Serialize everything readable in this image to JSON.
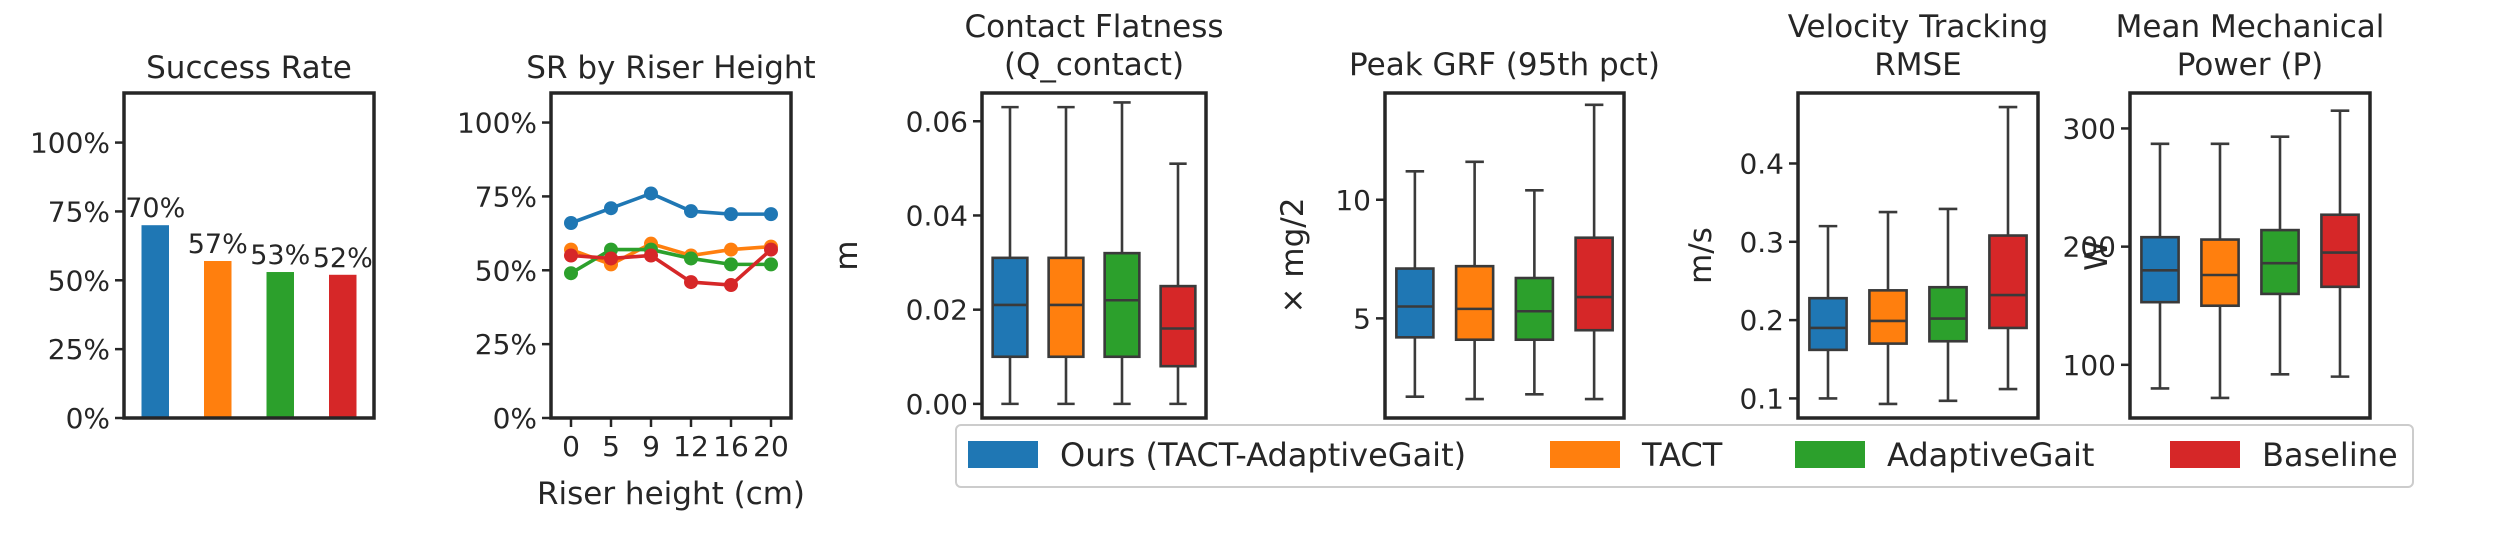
{
  "colors": {
    "ours": "#1f77b4",
    "tact": "#ff7f0e",
    "adaptive": "#2ca02c",
    "baseline": "#d62728"
  },
  "legend": {
    "items": [
      {
        "label": "Ours (TACT-AdaptiveGait)",
        "color": "#1f77b4"
      },
      {
        "label": "TACT",
        "color": "#ff7f0e"
      },
      {
        "label": "AdaptiveGait",
        "color": "#2ca02c"
      },
      {
        "label": "Baseline",
        "color": "#d62728"
      }
    ]
  },
  "chart_data": [
    {
      "type": "bar",
      "title": "Success Rate",
      "categories": [
        "Ours (TACT-AdaptiveGait)",
        "TACT",
        "AdaptiveGait",
        "Baseline"
      ],
      "values": [
        70,
        57,
        53,
        52
      ],
      "value_labels": [
        "70%",
        "57%",
        "53%",
        "52%"
      ],
      "ylim": [
        0,
        118
      ],
      "yticks": [
        0,
        25,
        50,
        75,
        100
      ],
      "ytick_labels": [
        "0%",
        "25%",
        "50%",
        "75%",
        "100%"
      ],
      "xlabel": "",
      "ylabel": ""
    },
    {
      "type": "line",
      "title": "SR by Riser Height",
      "xlabel": "Riser height (cm)",
      "ylabel": "",
      "categories": [
        "0",
        "5",
        "9",
        "12",
        "16",
        "20"
      ],
      "ylim": [
        0,
        110
      ],
      "yticks": [
        0,
        25,
        50,
        75,
        100
      ],
      "ytick_labels": [
        "0%",
        "25%",
        "50%",
        "75%",
        "100%"
      ],
      "series": [
        {
          "name": "Ours (TACT-AdaptiveGait)",
          "values": [
            66,
            71,
            76,
            70,
            69,
            69
          ]
        },
        {
          "name": "TACT",
          "values": [
            57,
            52,
            59,
            55,
            57,
            58
          ]
        },
        {
          "name": "AdaptiveGait",
          "values": [
            49,
            57,
            57,
            54,
            52,
            52
          ]
        },
        {
          "name": "Baseline",
          "values": [
            55,
            54,
            55,
            46,
            45,
            57
          ]
        }
      ]
    },
    {
      "type": "box",
      "title": "Contact Flatness (Q_contact)",
      "title_lines": [
        "Contact Flatness",
        "(Q_contact)"
      ],
      "ylabel": "m",
      "ylim": [
        -0.003,
        0.066
      ],
      "yticks": [
        0.0,
        0.02,
        0.04,
        0.06
      ],
      "ytick_labels": [
        "0.00",
        "0.02",
        "0.04",
        "0.06"
      ],
      "series": [
        {
          "name": "Ours (TACT-AdaptiveGait)",
          "min": 0.0,
          "q1": 0.01,
          "median": 0.021,
          "q3": 0.031,
          "max": 0.063
        },
        {
          "name": "TACT",
          "min": 0.0,
          "q1": 0.01,
          "median": 0.021,
          "q3": 0.031,
          "max": 0.063
        },
        {
          "name": "AdaptiveGait",
          "min": 0.0,
          "q1": 0.01,
          "median": 0.022,
          "q3": 0.032,
          "max": 0.064
        },
        {
          "name": "Baseline",
          "min": 0.0,
          "q1": 0.008,
          "median": 0.016,
          "q3": 0.025,
          "max": 0.051
        }
      ]
    },
    {
      "type": "box",
      "title": "Peak GRF (95th pct)",
      "title_lines": [
        "Peak GRF (95th pct)"
      ],
      "ylabel": "× mg/2",
      "ylim": [
        0.8,
        14.5
      ],
      "yticks": [
        5,
        10
      ],
      "ytick_labels": [
        "5",
        "10"
      ],
      "series": [
        {
          "name": "Ours (TACT-AdaptiveGait)",
          "min": 1.7,
          "q1": 4.2,
          "median": 5.5,
          "q3": 7.1,
          "max": 11.2
        },
        {
          "name": "TACT",
          "min": 1.6,
          "q1": 4.1,
          "median": 5.4,
          "q3": 7.2,
          "max": 11.6
        },
        {
          "name": "AdaptiveGait",
          "min": 1.8,
          "q1": 4.1,
          "median": 5.3,
          "q3": 6.7,
          "max": 10.4
        },
        {
          "name": "Baseline",
          "min": 1.6,
          "q1": 4.5,
          "median": 5.9,
          "q3": 8.4,
          "max": 14.0
        }
      ]
    },
    {
      "type": "box",
      "title": "Velocity Tracking RMSE",
      "title_lines": [
        "Velocity Tracking",
        "RMSE"
      ],
      "ylabel": "m/s",
      "ylim": [
        0.075,
        0.49
      ],
      "yticks": [
        0.1,
        0.2,
        0.3,
        0.4
      ],
      "ytick_labels": [
        "0.1",
        "0.2",
        "0.3",
        "0.4"
      ],
      "series": [
        {
          "name": "Ours (TACT-AdaptiveGait)",
          "min": 0.1,
          "q1": 0.162,
          "median": 0.19,
          "q3": 0.228,
          "max": 0.32
        },
        {
          "name": "TACT",
          "min": 0.093,
          "q1": 0.17,
          "median": 0.199,
          "q3": 0.238,
          "max": 0.338
        },
        {
          "name": "AdaptiveGait",
          "min": 0.097,
          "q1": 0.173,
          "median": 0.202,
          "q3": 0.242,
          "max": 0.342
        },
        {
          "name": "Baseline",
          "min": 0.112,
          "q1": 0.19,
          "median": 0.232,
          "q3": 0.308,
          "max": 0.472
        }
      ]
    },
    {
      "type": "box",
      "title": "Mean Mechanical Power (P)",
      "title_lines": [
        "Mean Mechanical",
        "Power (P)"
      ],
      "ylabel": "W",
      "ylim": [
        55,
        330
      ],
      "yticks": [
        100,
        200,
        300
      ],
      "ytick_labels": [
        "100",
        "200",
        "300"
      ],
      "series": [
        {
          "name": "Ours (TACT-AdaptiveGait)",
          "min": 80,
          "q1": 153,
          "median": 180,
          "q3": 208,
          "max": 287
        },
        {
          "name": "TACT",
          "min": 72,
          "q1": 150,
          "median": 176,
          "q3": 206,
          "max": 287
        },
        {
          "name": "AdaptiveGait",
          "min": 92,
          "q1": 160,
          "median": 186,
          "q3": 214,
          "max": 293
        },
        {
          "name": "Baseline",
          "min": 90,
          "q1": 166,
          "median": 195,
          "q3": 227,
          "max": 315
        }
      ]
    }
  ]
}
